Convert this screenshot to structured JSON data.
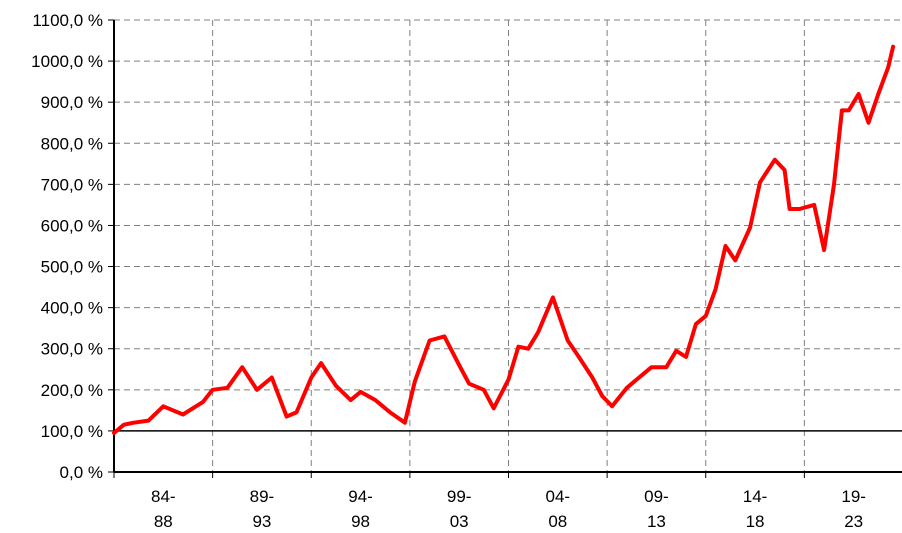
{
  "chart_data": {
    "type": "line",
    "title": "",
    "xlabel": "",
    "ylabel": "",
    "ylim": [
      0,
      1100
    ],
    "y_ticks": [
      0,
      100,
      200,
      300,
      400,
      500,
      600,
      700,
      800,
      900,
      1000,
      1100
    ],
    "y_tick_labels": [
      "0,0 %",
      "100,0 %",
      "200,0 %",
      "300,0 %",
      "400,0 %",
      "500,0 %",
      "600,0 %",
      "700,0 %",
      "800,0 %",
      "900,0 %",
      "1000,0 %",
      "1100,0 %"
    ],
    "x_categories": [
      {
        "top": "84-",
        "bottom": "88"
      },
      {
        "top": "89-",
        "bottom": "93"
      },
      {
        "top": "94-",
        "bottom": "98"
      },
      {
        "top": "99-",
        "bottom": "03"
      },
      {
        "top": "04-",
        "bottom": "08"
      },
      {
        "top": "09-",
        "bottom": "13"
      },
      {
        "top": "14-",
        "bottom": "18"
      },
      {
        "top": "19-",
        "bottom": "23"
      }
    ],
    "grid": true,
    "reference_line": 100,
    "series_color": "#ff0000",
    "series": [
      {
        "x": [
          0,
          0.1,
          0.2,
          0.35,
          0.5,
          0.7,
          0.9,
          1.0,
          1.15,
          1.3,
          1.45,
          1.6,
          1.75,
          1.85,
          2.0,
          2.1,
          2.25,
          2.4,
          2.5,
          2.65,
          2.8,
          2.95,
          3.05,
          3.2,
          3.35,
          3.5,
          3.6,
          3.75,
          3.85,
          4.0,
          4.1,
          4.2,
          4.3,
          4.45,
          4.6,
          4.7,
          4.85,
          4.95,
          5.05,
          5.2,
          5.3,
          5.45,
          5.6,
          5.7,
          5.8,
          5.9,
          6.0,
          6.1,
          6.2,
          6.3,
          6.45,
          6.55,
          6.7,
          6.8,
          6.85,
          6.95,
          7.1,
          7.2,
          7.3,
          7.38,
          7.45,
          7.55,
          7.65,
          7.75,
          7.85,
          7.9
        ],
        "y": [
          95,
          115,
          120,
          125,
          160,
          140,
          170,
          200,
          205,
          255,
          200,
          230,
          135,
          145,
          230,
          265,
          210,
          175,
          195,
          175,
          145,
          120,
          220,
          320,
          330,
          260,
          215,
          200,
          155,
          225,
          305,
          300,
          340,
          425,
          320,
          285,
          230,
          185,
          160,
          205,
          225,
          255,
          255,
          295,
          280,
          360,
          380,
          445,
          550,
          515,
          595,
          705,
          760,
          735,
          640,
          640,
          650,
          540,
          700,
          880,
          880,
          920,
          850,
          920,
          985,
          1035
        ]
      }
    ]
  }
}
